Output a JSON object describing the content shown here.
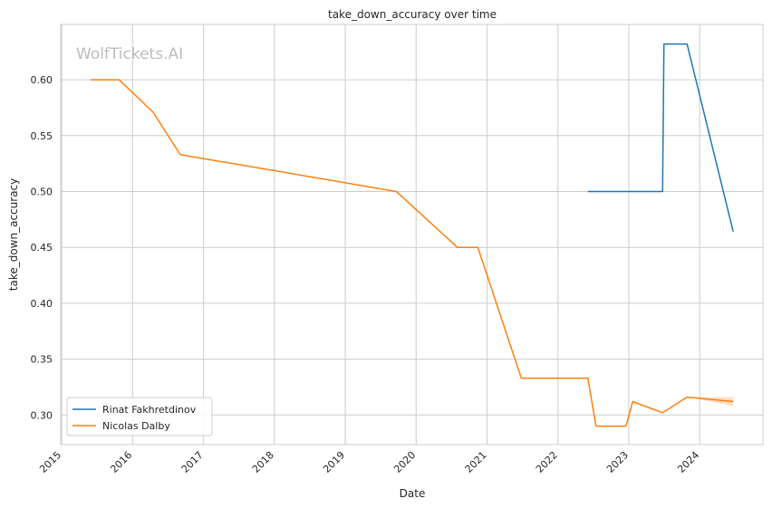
{
  "chart_data": {
    "type": "line",
    "title": "take_down_accuracy over time",
    "xlabel": "Date",
    "ylabel": "take_down_accuracy",
    "watermark": "WolfTickets.AI",
    "x_ticks": [
      "2015",
      "2016",
      "2017",
      "2018",
      "2019",
      "2020",
      "2021",
      "2022",
      "2023",
      "2024"
    ],
    "y_ticks": [
      "0.30",
      "0.35",
      "0.40",
      "0.45",
      "0.50",
      "0.55",
      "0.60"
    ],
    "y_tick_values": [
      0.3,
      0.35,
      0.4,
      0.45,
      0.5,
      0.55,
      0.6
    ],
    "xlim": [
      "2014-12-27",
      "2024-11-22"
    ],
    "ylim": [
      0.2735,
      0.6495
    ],
    "grid": true,
    "legend_position": "lower-left",
    "series": [
      {
        "name": "Rinat Fakhretdinov",
        "color": "#1f77b4",
        "x": [
          "2022-06-04",
          "2023-06-24",
          "2023-07-01",
          "2023-10-28",
          "2024-06-22"
        ],
        "y": [
          0.5,
          0.5,
          0.632,
          0.632,
          0.464
        ]
      },
      {
        "name": "Nicolas Dalby",
        "color": "#ff7f0e",
        "x": [
          "2015-05-30",
          "2015-10-24",
          "2016-04-16",
          "2016-09-03",
          "2019-09-21",
          "2020-08-01",
          "2020-11-14",
          "2021-06-26",
          "2022-06-04",
          "2022-07-16",
          "2022-12-17",
          "2023-01-21",
          "2023-06-24",
          "2023-10-28",
          "2024-06-22"
        ],
        "y": [
          0.6,
          0.6,
          0.571,
          0.533,
          0.5,
          0.45,
          0.45,
          0.333,
          0.333,
          0.29,
          0.29,
          0.312,
          0.302,
          0.316,
          0.312
        ],
        "band_lower": [
          0.6,
          0.6,
          0.571,
          0.533,
          0.5,
          0.45,
          0.45,
          0.333,
          0.333,
          0.29,
          0.29,
          0.312,
          0.302,
          0.316,
          0.308
        ],
        "band_upper": [
          0.6,
          0.6,
          0.571,
          0.533,
          0.5,
          0.45,
          0.45,
          0.333,
          0.333,
          0.29,
          0.29,
          0.312,
          0.302,
          0.316,
          0.316
        ]
      }
    ]
  }
}
